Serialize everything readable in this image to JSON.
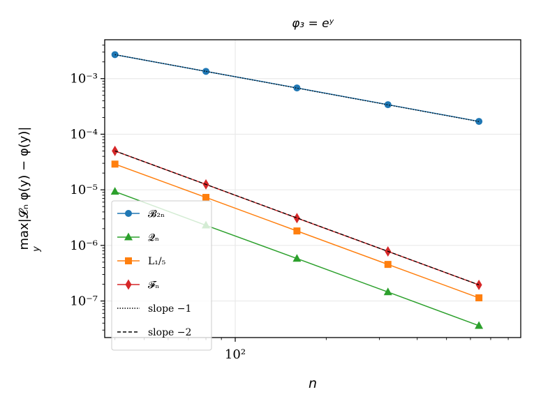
{
  "chart_data": {
    "type": "line",
    "title": "φ₃ = eʸ",
    "xlabel": "n",
    "ylabel": "max|𝓛ₙ φ(y) − φ(y)|",
    "ylabel_sub": "y",
    "xscale": "log",
    "yscale": "log",
    "xlim": [
      37,
      880
    ],
    "ylim": [
      2.2e-08,
      0.005
    ],
    "grid": true,
    "legend_position": "lower-left",
    "x": [
      40,
      80,
      160,
      320,
      640
    ],
    "x_tick_labels": [
      {
        "value": 100,
        "label": "10²"
      }
    ],
    "y_tick_labels": [
      {
        "value": 1e-07,
        "label": "10⁻⁷"
      },
      {
        "value": 1e-06,
        "label": "10⁻⁶"
      },
      {
        "value": 1e-05,
        "label": "10⁻⁵"
      },
      {
        "value": 0.0001,
        "label": "10⁻⁴"
      },
      {
        "value": 0.001,
        "label": "10⁻³"
      }
    ],
    "series": [
      {
        "name": "𝓑₂ₙ",
        "color": "#1f77b4",
        "marker": "circle",
        "line": "solid",
        "values": [
          0.0027,
          0.00135,
          0.00068,
          0.00034,
          0.00017
        ]
      },
      {
        "name": "𝓠ₙ",
        "color": "#2ca02c",
        "marker": "triangle",
        "line": "solid",
        "values": [
          9.3e-06,
          2.3e-06,
          5.8e-07,
          1.45e-07,
          3.6e-08
        ]
      },
      {
        "name": "L₁/₅",
        "color": "#ff7f0e",
        "marker": "square",
        "line": "solid",
        "values": [
          2.9e-05,
          7.3e-06,
          1.82e-06,
          4.55e-07,
          1.14e-07
        ]
      },
      {
        "name": "𝓕ₙ",
        "color": "#d62728",
        "marker": "diamond",
        "line": "solid",
        "values": [
          5e-05,
          1.25e-05,
          3.1e-06,
          7.8e-07,
          1.95e-07
        ]
      },
      {
        "name": "slope −1",
        "color": "#000000",
        "marker": "none",
        "line": "dotted",
        "values": [
          0.0027,
          0.00135,
          0.000675,
          0.0003375,
          0.00016875
        ]
      },
      {
        "name": "slope −2",
        "color": "#000000",
        "marker": "none",
        "line": "dashed",
        "values": [
          5e-05,
          1.25e-05,
          3.125e-06,
          7.8125e-07,
          1.953e-07
        ]
      }
    ]
  }
}
